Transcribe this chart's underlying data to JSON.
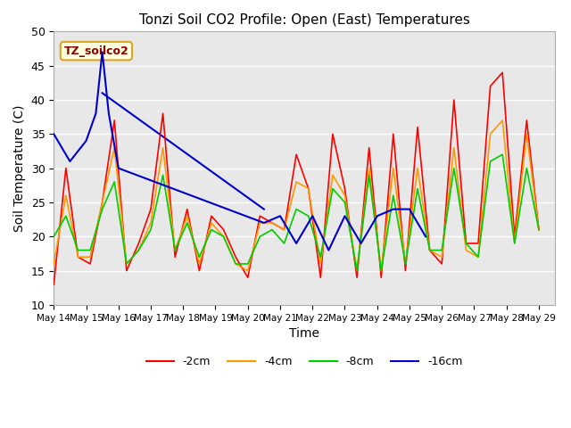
{
  "title": "Tonzi Soil CO2 Profile: Open (East) Temperatures",
  "xlabel": "Time",
  "ylabel": "Soil Temperature (C)",
  "ylim": [
    10,
    50
  ],
  "xlim": [
    0,
    15.5
  ],
  "x_tick_labels": [
    "May 14",
    "May 15",
    "May 16",
    "May 17",
    "May 18",
    "May 19",
    "May 20",
    "May 21",
    "May 22",
    "May 23",
    "May 24",
    "May 25",
    "May 26",
    "May 27",
    "May 28",
    "May 29"
  ],
  "colors": {
    "neg2cm": "#ff0000",
    "neg4cm": "#ff9900",
    "neg8cm": "#00cc00",
    "neg16cm": "#0000cc"
  },
  "legend_labels": [
    "-2cm",
    "-4cm",
    "-8cm",
    "-16cm"
  ],
  "annotation_box": "TZ_soilco2",
  "background_color": "#e8e8e8",
  "grid_color": "#ffffff",
  "neg2cm": [
    13,
    30,
    17,
    16,
    25,
    37,
    15,
    19,
    24,
    38,
    17,
    24,
    15,
    23,
    21,
    17,
    14,
    23,
    22,
    21,
    32,
    27,
    14,
    35,
    27,
    14,
    33,
    14,
    35,
    15,
    36,
    18,
    16,
    40,
    19,
    19,
    42,
    44,
    20,
    37,
    21
  ],
  "neg4cm": [
    16,
    26,
    17,
    17,
    25,
    33,
    16,
    18,
    22,
    33,
    18,
    23,
    16,
    22,
    20,
    16,
    15,
    22,
    22,
    21,
    28,
    27,
    16,
    29,
    26,
    15,
    30,
    15,
    30,
    16,
    30,
    18,
    17,
    33,
    18,
    17,
    35,
    37,
    19,
    35,
    21
  ],
  "neg8cm": [
    20,
    23,
    18,
    18,
    24,
    28,
    16,
    18,
    21,
    29,
    18,
    22,
    17,
    21,
    20,
    16,
    16,
    20,
    21,
    19,
    24,
    23,
    17,
    27,
    25,
    15,
    29,
    15,
    26,
    16,
    27,
    18,
    18,
    30,
    19,
    17,
    31,
    32,
    19,
    30,
    21
  ],
  "neg16cm_x": [
    0,
    0.5,
    1.0,
    1.3,
    1.5,
    1.7,
    2.0,
    6.5,
    7.0,
    7.5,
    8.0,
    8.5,
    9.0,
    9.5,
    10.0,
    10.5,
    11.0,
    11.5
  ],
  "neg16cm_y": [
    35,
    31,
    34,
    38,
    47,
    38,
    30,
    22,
    23,
    19,
    23,
    18,
    23,
    19,
    23,
    24,
    24,
    20
  ],
  "trendline_x": [
    1.5,
    6.5
  ],
  "trendline_y": [
    41,
    24
  ]
}
